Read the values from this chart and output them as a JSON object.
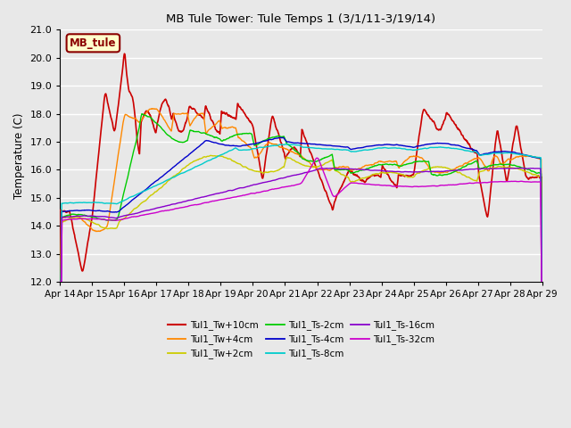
{
  "title": "MB Tule Tower: Tule Temps 1 (3/1/11-3/19/14)",
  "ylabel": "Temperature (C)",
  "ylim": [
    12.0,
    21.0
  ],
  "yticks": [
    12.0,
    13.0,
    14.0,
    15.0,
    16.0,
    17.0,
    18.0,
    19.0,
    20.0,
    21.0
  ],
  "xtick_labels": [
    "Apr 14",
    "Apr 15",
    "Apr 16",
    "Apr 17",
    "Apr 18",
    "Apr 19",
    "Apr 20",
    "Apr 21",
    "Apr 22",
    "Apr 23",
    "Apr 24",
    "Apr 25",
    "Apr 26",
    "Apr 27",
    "Apr 28",
    "Apr 29"
  ],
  "bg_color": "#e8e8e8",
  "grid_color": "#ffffff",
  "series": [
    {
      "label": "Tul1_Tw+10cm",
      "color": "#cc0000",
      "lw": 1.2
    },
    {
      "label": "Tul1_Tw+4cm",
      "color": "#ff8800",
      "lw": 1.0
    },
    {
      "label": "Tul1_Tw+2cm",
      "color": "#cccc00",
      "lw": 1.0
    },
    {
      "label": "Tul1_Ts-2cm",
      "color": "#00cc00",
      "lw": 1.0
    },
    {
      "label": "Tul1_Ts-4cm",
      "color": "#0000cc",
      "lw": 1.0
    },
    {
      "label": "Tul1_Ts-8cm",
      "color": "#00cccc",
      "lw": 1.0
    },
    {
      "label": "Tul1_Ts-16cm",
      "color": "#8800cc",
      "lw": 1.0
    },
    {
      "label": "Tul1_Ts-32cm",
      "color": "#cc00cc",
      "lw": 1.0
    }
  ],
  "legend_box": {
    "text": "MB_tule",
    "facecolor": "#ffffcc",
    "edgecolor": "#8b0000",
    "textcolor": "#8b0000"
  },
  "n_points": 1500
}
